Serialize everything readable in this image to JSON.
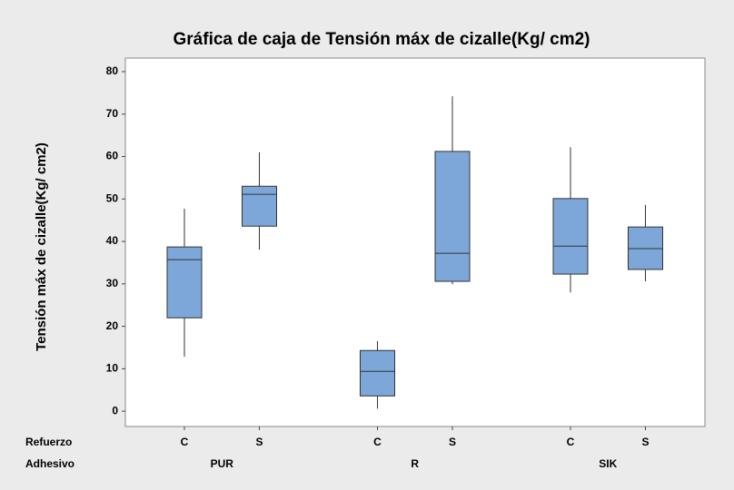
{
  "chart_data": {
    "type": "boxplot",
    "title": "Gráfica de caja de Tensión máx de cizalle(Kg/ cm2)",
    "ylabel": "Tensión máx de cizalle(Kg/ cm2)",
    "factors": [
      {
        "name": "Refuerzo",
        "levels": [
          "C",
          "S",
          "C",
          "S",
          "C",
          "S"
        ]
      },
      {
        "name": "Adhesivo",
        "levels": [
          "PUR",
          "R",
          "SIK"
        ]
      }
    ],
    "boxes": [
      {
        "min": 12.8,
        "q1": 22.0,
        "median": 35.7,
        "q3": 38.7,
        "max": 47.7
      },
      {
        "min": 38.1,
        "q1": 43.6,
        "median": 51.1,
        "q3": 53.0,
        "max": 61.0
      },
      {
        "min": 0.6,
        "q1": 3.6,
        "median": 9.4,
        "q3": 14.3,
        "max": 16.5
      },
      {
        "min": 29.9,
        "q1": 30.6,
        "median": 37.2,
        "q3": 61.2,
        "max": 74.2
      },
      {
        "min": 28.0,
        "q1": 32.3,
        "median": 38.9,
        "q3": 50.1,
        "max": 62.2
      },
      {
        "min": 30.6,
        "q1": 33.4,
        "median": 38.3,
        "q3": 43.4,
        "max": 48.6
      }
    ],
    "color": "#7da7d9",
    "ylim": [
      -3.6,
      83.2
    ],
    "yticks": [
      0,
      10,
      20,
      30,
      40,
      50,
      60,
      70,
      80
    ]
  }
}
